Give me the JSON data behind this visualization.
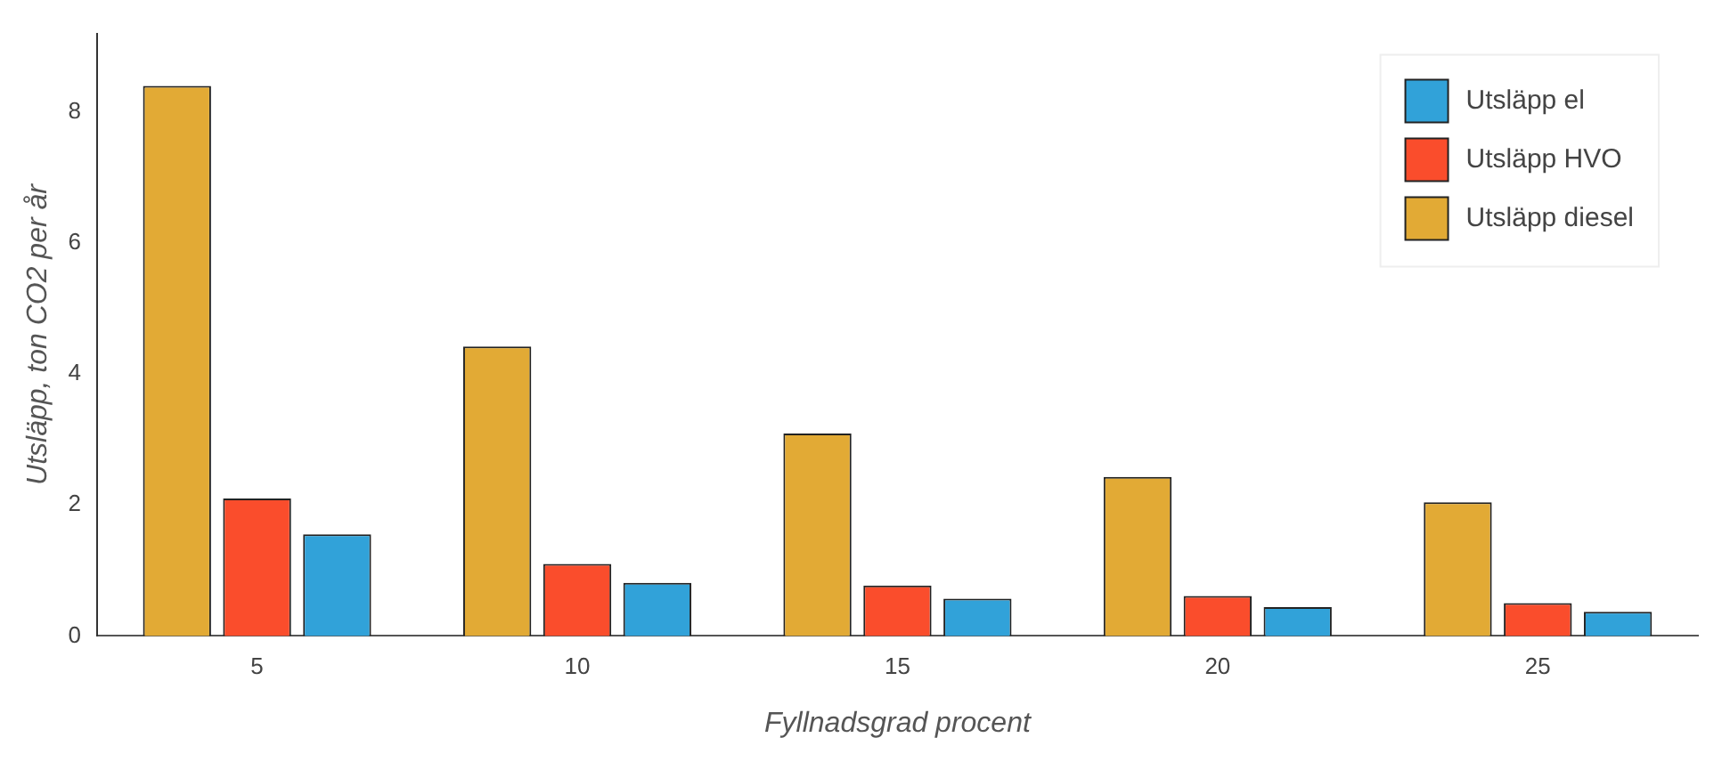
{
  "chart_data": {
    "type": "bar",
    "xlabel": "Fyllnadsgrad procent",
    "ylabel": "Utsläpp, ton CO2 per år",
    "categories": [
      "5",
      "10",
      "15",
      "20",
      "25"
    ],
    "series": [
      {
        "name": "Utsläpp diesel",
        "color": "#e2aa35",
        "values": [
          8.4,
          4.42,
          3.09,
          2.43,
          2.04
        ]
      },
      {
        "name": "Utsläpp HVO",
        "color": "#fa4d2c",
        "values": [
          2.1,
          1.1,
          0.77,
          0.61,
          0.5
        ]
      },
      {
        "name": "Utsläpp el",
        "color": "#31a2d9",
        "values": [
          1.55,
          0.81,
          0.57,
          0.44,
          0.37
        ]
      }
    ],
    "ylim": [
      0,
      9.2
    ],
    "yticks": [
      0,
      2,
      4,
      6,
      8
    ],
    "grid": false,
    "legend": "top right"
  }
}
